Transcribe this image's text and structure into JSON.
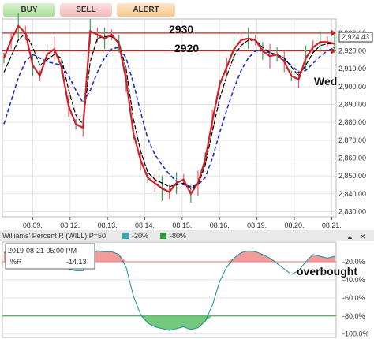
{
  "toolbar": {
    "buy_label": "BUY",
    "sell_label": "SELL",
    "alert_label": "ALERT"
  },
  "price_tag": "2,924.43",
  "oscillator": {
    "title": "Williams' Percent R (WILL) P=50",
    "legend": [
      {
        "label": "-20%",
        "color": "#2eaab0"
      },
      {
        "label": "-80%",
        "color": "#2d9a3c"
      }
    ],
    "tooltip_date": "2019-08-21 05:00 PM",
    "tooltip_label": "%R",
    "tooltip_value": "-14.13"
  },
  "annotations": {
    "upper_level": "2930",
    "lower_level": "2920",
    "day": "Wed",
    "osc_note": "overbought"
  },
  "colors": {
    "price": "#d0202a",
    "fast_ma": "#000000",
    "slow_ma": "#1f2fbf",
    "levels": "#cc2222",
    "osc_line": "#1a8f9a"
  },
  "chart_data": [
    {
      "type": "line",
      "dates": [
        "08.09.",
        "08.12.",
        "08.13.",
        "08.14.",
        "08.15.",
        "08.16.",
        "08.19.",
        "08.20.",
        "08.21."
      ],
      "y_ticks": [
        "2,830.00",
        "2,840.00",
        "2,850.00",
        "2,860.00",
        "2,870.00",
        "2,880.00",
        "2,890.00",
        "2,900.00",
        "2,910.00",
        "2,920.00",
        "2,930.00"
      ],
      "ylim": [
        2828,
        2937
      ],
      "levels": [
        2930,
        2920
      ],
      "price": [
        2916,
        2926,
        2934,
        2930,
        2912,
        2906,
        2918,
        2921,
        2911,
        2889,
        2879,
        2877,
        2931,
        2929,
        2927,
        2929,
        2924,
        2904,
        2874,
        2859,
        2849,
        2846,
        2843,
        2841,
        2846,
        2848,
        2840,
        2846,
        2859,
        2881,
        2901,
        2911,
        2921,
        2926,
        2927,
        2926,
        2920,
        2917,
        2918,
        2914,
        2906,
        2904,
        2916,
        2922,
        2925,
        2925,
        2924
      ],
      "fast_ma": [
        2908,
        2917,
        2926,
        2930,
        2922,
        2912,
        2915,
        2918,
        2916,
        2898,
        2884,
        2879,
        2914,
        2927,
        2928,
        2928,
        2925,
        2910,
        2882,
        2864,
        2852,
        2848,
        2846,
        2844,
        2845,
        2846,
        2843,
        2845,
        2856,
        2875,
        2893,
        2906,
        2917,
        2923,
        2926,
        2926,
        2922,
        2919,
        2918,
        2916,
        2911,
        2906,
        2912,
        2919,
        2923,
        2924,
        2924
      ],
      "slow_ma": [
        2879,
        2892,
        2905,
        2914,
        2918,
        2916,
        2914,
        2913,
        2912,
        2906,
        2898,
        2891,
        2898,
        2908,
        2916,
        2921,
        2922,
        2916,
        2902,
        2886,
        2871,
        2862,
        2856,
        2851,
        2847,
        2845,
        2844,
        2845,
        2849,
        2860,
        2874,
        2887,
        2899,
        2909,
        2916,
        2920,
        2920,
        2919,
        2917,
        2915,
        2912,
        2908,
        2909,
        2913,
        2917,
        2920,
        2922
      ]
    },
    {
      "type": "area",
      "title": "Williams' Percent R (WILL) P=50",
      "y_ticks": [
        "-20.0%",
        "-40.0%",
        "-60.0%",
        "-80.0%",
        "-100.0%"
      ],
      "ylim": [
        -102,
        0
      ],
      "thresholds": [
        -20,
        -80
      ],
      "values": [
        -10,
        -6,
        -5,
        -8,
        -14,
        -18,
        -22,
        -20,
        -24,
        -28,
        -30,
        -30,
        -12,
        -8,
        -9,
        -9,
        -12,
        -26,
        -58,
        -78,
        -88,
        -92,
        -94,
        -96,
        -94,
        -92,
        -95,
        -93,
        -86,
        -68,
        -42,
        -26,
        -16,
        -10,
        -8,
        -9,
        -12,
        -16,
        -22,
        -28,
        -34,
        -30,
        -20,
        -12,
        -14,
        -16,
        -14
      ]
    }
  ]
}
